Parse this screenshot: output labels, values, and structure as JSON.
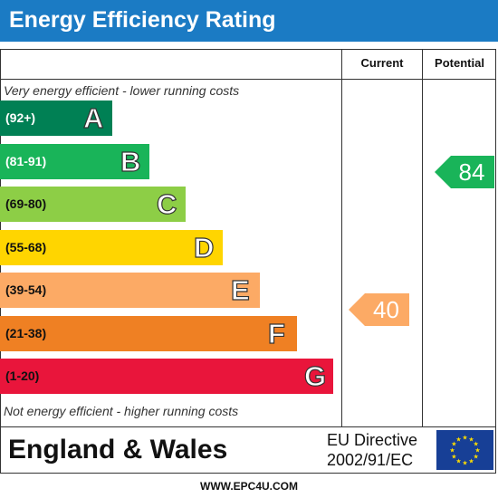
{
  "header": {
    "title": "Energy Efficiency Rating"
  },
  "columns": {
    "current": "Current",
    "potential": "Potential"
  },
  "captions": {
    "top": "Very energy efficient - lower running costs",
    "bottom": "Not energy efficient - higher running costs"
  },
  "bands": [
    {
      "range": "(92+)",
      "letter": "A",
      "color": "#008054",
      "text_color": "#ffffff"
    },
    {
      "range": "(81-91)",
      "letter": "B",
      "color": "#19b459",
      "text_color": "#ffffff"
    },
    {
      "range": "(69-80)",
      "letter": "C",
      "color": "#8dce46",
      "text_color": "#111111"
    },
    {
      "range": "(55-68)",
      "letter": "D",
      "color": "#ffd500",
      "text_color": "#111111"
    },
    {
      "range": "(39-54)",
      "letter": "E",
      "color": "#fcaa65",
      "text_color": "#111111"
    },
    {
      "range": "(21-38)",
      "letter": "F",
      "color": "#ef8023",
      "text_color": "#111111"
    },
    {
      "range": "(1-20)",
      "letter": "G",
      "color": "#e9153b",
      "text_color": "#111111"
    }
  ],
  "ratings": {
    "current": {
      "value": "40",
      "color": "#fcaa65"
    },
    "potential": {
      "value": "84",
      "color": "#19b459"
    }
  },
  "footer": {
    "region": "England & Wales",
    "directive_line1": "EU Directive",
    "directive_line2": "2002/91/EC",
    "flag_icon": "eu-flag-icon",
    "flag_color": "#173f96",
    "star_color": "#ffdd00"
  },
  "url": "WWW.EPC4U.COM"
}
